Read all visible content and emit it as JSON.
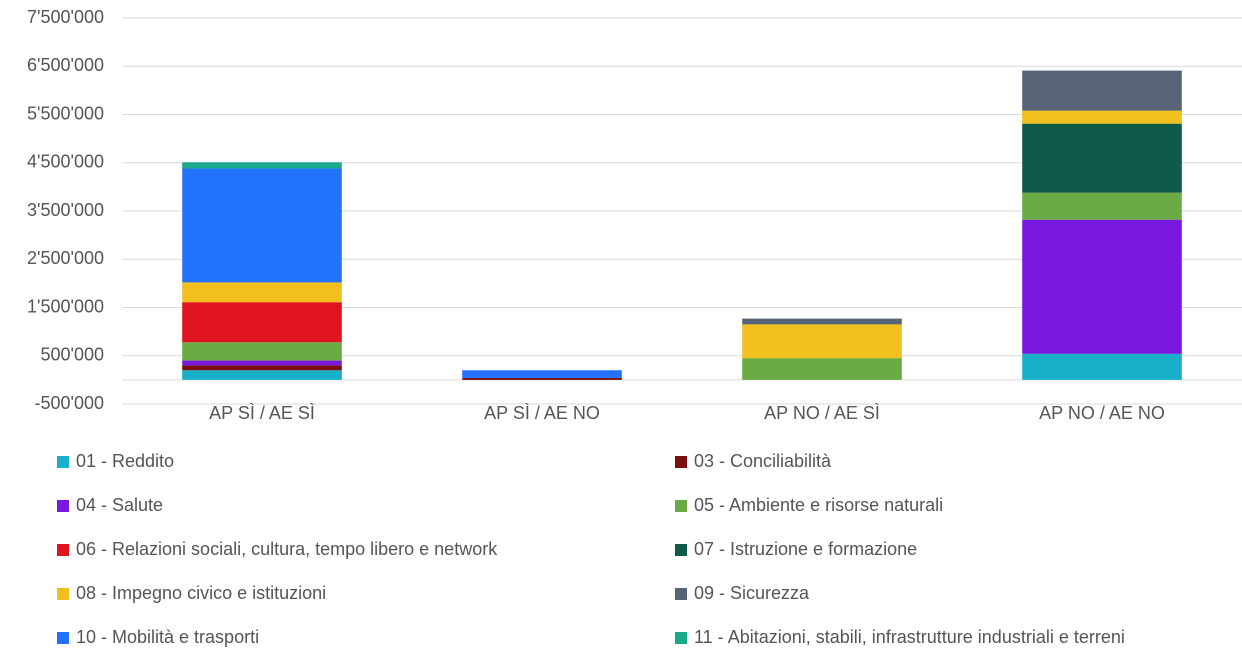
{
  "chart_data": {
    "type": "stacked_bar",
    "categories": [
      "AP SÌ / AE SÌ",
      "AP SÌ / AE NO",
      "AP NO / AE SÌ",
      "AP NO / AE NO"
    ],
    "series": [
      {
        "name": "01 - Reddito",
        "color": "#17b0c8",
        "values": [
          200000,
          null,
          null,
          540000
        ]
      },
      {
        "name": "03 - Conciliabilità",
        "color": "#7b0f0f",
        "values": [
          100000,
          40000,
          null,
          null
        ]
      },
      {
        "name": "04 - Salute",
        "color": "#7a18e0",
        "values": [
          100000,
          null,
          null,
          2780000
        ]
      },
      {
        "name": "05 - Ambiente e risorse naturali",
        "color": "#6aab46",
        "values": [
          380000,
          null,
          450000,
          560000
        ]
      },
      {
        "name": "06 - Relazioni sociali, cultura, tempo libero e network",
        "color": "#e0141e",
        "values": [
          830000,
          null,
          null,
          null
        ]
      },
      {
        "name": "07 - Istruzione e formazione",
        "color": "#0f5a48",
        "values": [
          null,
          null,
          null,
          1430000
        ]
      },
      {
        "name": "08 - Impegno civico e istituzioni",
        "color": "#f2c01d",
        "values": [
          410000,
          null,
          700000,
          270000
        ]
      },
      {
        "name": "09 - Sicurezza",
        "color": "#566476",
        "values": [
          null,
          null,
          120000,
          830000
        ]
      },
      {
        "name": "10 - Mobilità e trasporti",
        "color": "#2272ff",
        "values": [
          2360000,
          160000,
          null,
          null
        ]
      },
      {
        "name": "11 - Abitazioni, stabili, infrastrutture industriali e terreni",
        "color": "#1aaa8a",
        "values": [
          130000,
          null,
          null,
          null
        ]
      }
    ],
    "ylim": [
      -500000,
      7500000
    ],
    "yticks": [
      {
        "value": -500000,
        "label": "-500'000"
      },
      {
        "value": 500000,
        "label": "500'000"
      },
      {
        "value": 1500000,
        "label": "1'500'000"
      },
      {
        "value": 2500000,
        "label": "2'500'000"
      },
      {
        "value": 3500000,
        "label": "3'500'000"
      },
      {
        "value": 4500000,
        "label": "4'500'000"
      },
      {
        "value": 5500000,
        "label": "5'500'000"
      },
      {
        "value": 6500000,
        "label": "6'500'000"
      },
      {
        "value": 7500000,
        "label": "7'500'000"
      }
    ],
    "grid": true,
    "legend": "bottom"
  }
}
